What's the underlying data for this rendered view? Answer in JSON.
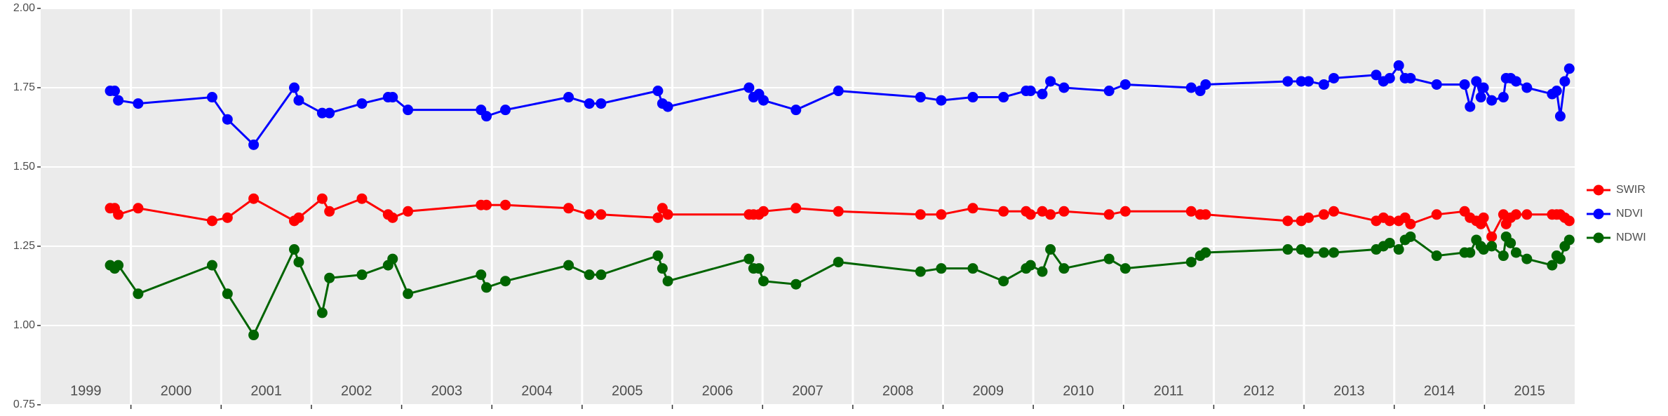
{
  "chart_data": {
    "type": "line",
    "x": [
      1999.77,
      1999.82,
      1999.86,
      2000.08,
      2000.9,
      2001.07,
      2001.36,
      2001.81,
      2001.86,
      2002.12,
      2002.2,
      2002.56,
      2002.85,
      2002.9,
      2003.07,
      2003.88,
      2003.94,
      2004.15,
      2004.85,
      2005.08,
      2005.21,
      2005.84,
      2005.89,
      2005.95,
      2006.85,
      2006.9,
      2006.96,
      2007.01,
      2007.37,
      2007.84,
      2008.75,
      2008.98,
      2009.33,
      2009.67,
      2009.92,
      2009.97,
      2010.1,
      2010.19,
      2010.34,
      2010.84,
      2011.02,
      2011.75,
      2011.85,
      2011.91,
      2012.82,
      2012.97,
      2013.05,
      2013.22,
      2013.33,
      2013.8,
      2013.88,
      2013.95,
      2014.05,
      2014.12,
      2014.18,
      2014.47,
      2014.78,
      2014.84,
      2014.91,
      2014.96,
      2014.99,
      2015.08,
      2015.21,
      2015.24,
      2015.29,
      2015.35,
      2015.47,
      2015.75,
      2015.8,
      2015.84,
      2015.89,
      2015.94
    ],
    "series": [
      {
        "name": "SWIR",
        "color": "#ff0000",
        "values": [
          1.37,
          1.37,
          1.35,
          1.37,
          1.33,
          1.34,
          1.4,
          1.33,
          1.34,
          1.4,
          1.36,
          1.4,
          1.35,
          1.34,
          1.36,
          1.38,
          1.38,
          1.38,
          1.37,
          1.35,
          1.35,
          1.34,
          1.37,
          1.35,
          1.35,
          1.35,
          1.35,
          1.36,
          1.37,
          1.36,
          1.35,
          1.35,
          1.37,
          1.36,
          1.36,
          1.35,
          1.36,
          1.35,
          1.36,
          1.35,
          1.36,
          1.36,
          1.35,
          1.35,
          1.33,
          1.33,
          1.34,
          1.35,
          1.36,
          1.33,
          1.34,
          1.33,
          1.33,
          1.34,
          1.32,
          1.35,
          1.36,
          1.34,
          1.33,
          1.32,
          1.34,
          1.28,
          1.35,
          1.32,
          1.34,
          1.35,
          1.35,
          1.35,
          1.35,
          1.35,
          1.34,
          1.33
        ]
      },
      {
        "name": "NDVI",
        "color": "#0000ff",
        "values": [
          1.74,
          1.74,
          1.71,
          1.7,
          1.72,
          1.65,
          1.57,
          1.75,
          1.71,
          1.67,
          1.67,
          1.7,
          1.72,
          1.72,
          1.68,
          1.68,
          1.66,
          1.68,
          1.72,
          1.7,
          1.7,
          1.74,
          1.7,
          1.69,
          1.75,
          1.72,
          1.73,
          1.71,
          1.68,
          1.74,
          1.72,
          1.71,
          1.72,
          1.72,
          1.74,
          1.74,
          1.73,
          1.77,
          1.75,
          1.74,
          1.76,
          1.75,
          1.74,
          1.76,
          1.77,
          1.77,
          1.77,
          1.76,
          1.78,
          1.79,
          1.77,
          1.78,
          1.82,
          1.78,
          1.78,
          1.76,
          1.76,
          1.69,
          1.77,
          1.72,
          1.75,
          1.71,
          1.72,
          1.78,
          1.78,
          1.77,
          1.75,
          1.73,
          1.74,
          1.66,
          1.77,
          1.81
        ]
      },
      {
        "name": "NDWI",
        "color": "#006400",
        "values": [
          1.19,
          1.18,
          1.19,
          1.1,
          1.19,
          1.1,
          0.97,
          1.24,
          1.2,
          1.04,
          1.15,
          1.16,
          1.19,
          1.21,
          1.1,
          1.16,
          1.12,
          1.14,
          1.19,
          1.16,
          1.16,
          1.22,
          1.18,
          1.14,
          1.21,
          1.18,
          1.18,
          1.14,
          1.13,
          1.2,
          1.17,
          1.18,
          1.18,
          1.14,
          1.18,
          1.19,
          1.17,
          1.24,
          1.18,
          1.21,
          1.18,
          1.2,
          1.22,
          1.23,
          1.24,
          1.24,
          1.23,
          1.23,
          1.23,
          1.24,
          1.25,
          1.26,
          1.24,
          1.27,
          1.28,
          1.22,
          1.23,
          1.23,
          1.27,
          1.25,
          1.24,
          1.25,
          1.22,
          1.28,
          1.26,
          1.23,
          1.21,
          1.19,
          1.22,
          1.21,
          1.25,
          1.27
        ]
      }
    ],
    "xlim": [
      1999,
      2016
    ],
    "xticks": [
      2000,
      2001,
      2002,
      2003,
      2004,
      2005,
      2006,
      2007,
      2008,
      2009,
      2010,
      2011,
      2012,
      2013,
      2014,
      2015
    ],
    "year_labels": [
      "1999",
      "2000",
      "2001",
      "2002",
      "2003",
      "2004",
      "2005",
      "2006",
      "2007",
      "2008",
      "2009",
      "2010",
      "2011",
      "2012",
      "2013",
      "2014",
      "2015"
    ],
    "ylim": [
      0.75,
      2.0
    ],
    "yticks": [
      {
        "value": 0.75,
        "label": "0.75"
      },
      {
        "value": 1.0,
        "label": "1.00"
      },
      {
        "value": 1.25,
        "label": "1.25"
      },
      {
        "value": 1.5,
        "label": "1.50"
      },
      {
        "value": 1.75,
        "label": "1.75"
      },
      {
        "value": 2.0,
        "label": "2.00"
      }
    ],
    "grid": true,
    "legend": "right"
  }
}
